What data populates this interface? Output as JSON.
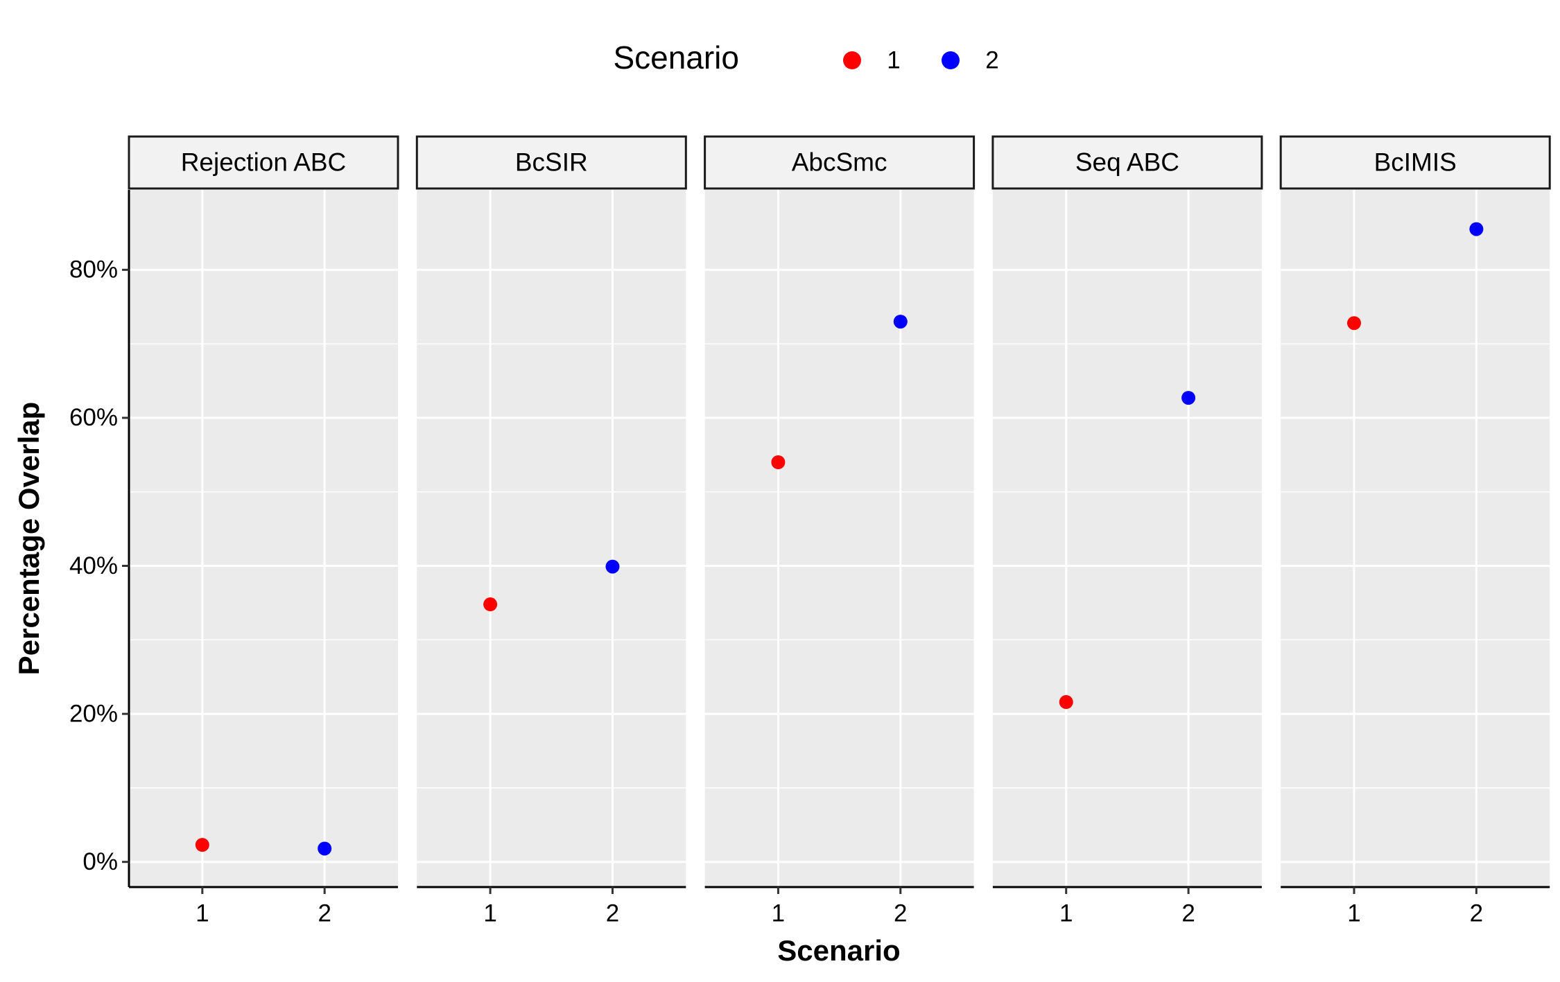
{
  "chart_data": {
    "type": "scatter",
    "legend_title": "Scenario",
    "x_label": "Scenario",
    "y_label": "Percentage Overlap",
    "facets": [
      "Rejection ABC",
      "BcSIR",
      "AbcSmc",
      "Seq ABC",
      "BcIMIS"
    ],
    "categories": [
      "1",
      "2"
    ],
    "series": [
      {
        "name": "1",
        "color": "#ff0000",
        "values": [
          2.3,
          34.8,
          54,
          21.6,
          72.8
        ]
      },
      {
        "name": "2",
        "color": "#0000ff",
        "values": [
          1.8,
          39.9,
          73,
          62.7,
          85.5
        ]
      }
    ],
    "ylim": [
      -3.4,
      90.8
    ],
    "yticks": [
      {
        "value": 0,
        "label": "0%"
      },
      {
        "value": 20,
        "label": "20%"
      },
      {
        "value": 40,
        "label": "40%"
      },
      {
        "value": 60,
        "label": "60%"
      },
      {
        "value": 80,
        "label": "80%"
      }
    ],
    "grid": true,
    "legend_position": "top"
  }
}
